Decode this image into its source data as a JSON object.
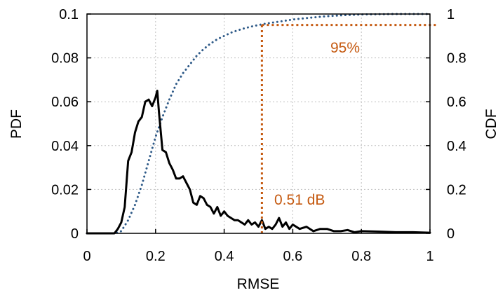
{
  "chart_data": {
    "type": "line",
    "xlabel": "RMSE",
    "ylabel_left": "PDF",
    "ylabel_right": "CDF",
    "xlim": [
      0,
      1
    ],
    "ylim_left": [
      0,
      0.1
    ],
    "ylim_right": [
      0,
      1
    ],
    "x_ticks": [
      0,
      0.2,
      0.4,
      0.6,
      0.8,
      1
    ],
    "x_tick_labels": [
      "0",
      "0.2",
      "0.4",
      "0.6",
      "0.8",
      "1"
    ],
    "y_left_ticks": [
      0,
      0.02,
      0.04,
      0.06,
      0.08,
      0.1
    ],
    "y_left_tick_labels": [
      "0",
      "0.02",
      "0.04",
      "0.06",
      "0.08",
      "0.1"
    ],
    "y_right_ticks": [
      0,
      0.2,
      0.4,
      0.6,
      0.8,
      1
    ],
    "y_right_tick_labels": [
      "0",
      "0.2",
      "0.4",
      "0.6",
      "0.8",
      "1"
    ],
    "grid": true,
    "series": [
      {
        "axis": "left",
        "style": "solid",
        "color": "#000000",
        "x": [
          0,
          0.08,
          0.09,
          0.1,
          0.11,
          0.12,
          0.13,
          0.14,
          0.15,
          0.16,
          0.17,
          0.18,
          0.19,
          0.2,
          0.205,
          0.21,
          0.22,
          0.23,
          0.24,
          0.25,
          0.26,
          0.27,
          0.28,
          0.29,
          0.3,
          0.31,
          0.32,
          0.33,
          0.34,
          0.35,
          0.36,
          0.37,
          0.38,
          0.39,
          0.4,
          0.41,
          0.42,
          0.43,
          0.44,
          0.45,
          0.46,
          0.47,
          0.48,
          0.49,
          0.5,
          0.51,
          0.52,
          0.53,
          0.54,
          0.55,
          0.56,
          0.57,
          0.58,
          0.59,
          0.6,
          0.62,
          0.64,
          0.66,
          0.68,
          0.7,
          0.72,
          0.74,
          0.76,
          0.78,
          0.8,
          0.85,
          0.9,
          0.95,
          1.0
        ],
        "y": [
          0,
          0.0,
          0.002,
          0.005,
          0.012,
          0.033,
          0.037,
          0.046,
          0.051,
          0.053,
          0.06,
          0.061,
          0.058,
          0.062,
          0.065,
          0.055,
          0.038,
          0.037,
          0.032,
          0.029,
          0.025,
          0.025,
          0.026,
          0.023,
          0.02,
          0.014,
          0.013,
          0.017,
          0.016,
          0.013,
          0.012,
          0.009,
          0.012,
          0.008,
          0.01,
          0.008,
          0.007,
          0.006,
          0.006,
          0.005,
          0.004,
          0.006,
          0.004,
          0.005,
          0.003,
          0.006,
          0.002,
          0.003,
          0.002,
          0.004,
          0.007,
          0.003,
          0.005,
          0.002,
          0.004,
          0.002,
          0.003,
          0.001,
          0.002,
          0.002,
          0.001,
          0.001,
          0.0015,
          0.0005,
          0.001,
          0.0008,
          0.0005,
          0.0005,
          0.0003
        ]
      },
      {
        "axis": "right",
        "style": "dotted",
        "color": "#2e5a88",
        "x": [
          0,
          0.05,
          0.08,
          0.1,
          0.12,
          0.14,
          0.16,
          0.18,
          0.2,
          0.22,
          0.24,
          0.26,
          0.28,
          0.3,
          0.32,
          0.34,
          0.36,
          0.38,
          0.4,
          0.42,
          0.44,
          0.46,
          0.48,
          0.5,
          0.52,
          0.55,
          0.58,
          0.6,
          0.65,
          0.7,
          0.75,
          0.8,
          0.9,
          1.0
        ],
        "y": [
          0,
          0,
          0,
          0.01,
          0.06,
          0.13,
          0.22,
          0.33,
          0.44,
          0.53,
          0.61,
          0.68,
          0.73,
          0.77,
          0.81,
          0.84,
          0.865,
          0.885,
          0.9,
          0.915,
          0.926,
          0.935,
          0.943,
          0.95,
          0.956,
          0.963,
          0.97,
          0.975,
          0.983,
          0.99,
          0.995,
          0.998,
          1.0,
          1.0
        ]
      }
    ],
    "reference_lines": [
      {
        "orientation": "vertical",
        "x": 0.51,
        "y_from_right": 0,
        "y_to_right": 0.95,
        "color": "#c55a11",
        "style": "dotted"
      },
      {
        "orientation": "horizontal",
        "y_right": 0.95,
        "x_from": 0.51,
        "x_to": 1.02,
        "color": "#c55a11",
        "style": "dotted"
      }
    ],
    "annotations": [
      {
        "text": "95%",
        "color": "#c55a11"
      },
      {
        "text": "0.51 dB",
        "color": "#c55a11"
      }
    ]
  }
}
